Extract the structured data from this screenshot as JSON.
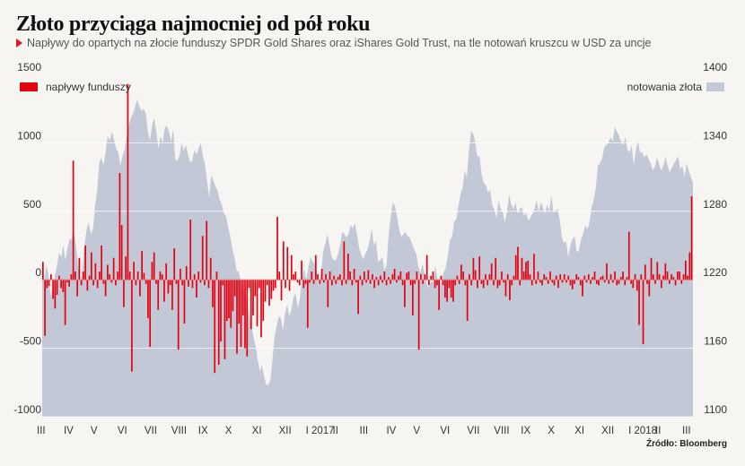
{
  "title": "Złoto przyciąga najmocniej od pół roku",
  "subtitle": "Napływy do opartych na złocie funduszy SPDR Gold Shares oraz iShares Gold Trust, na tle notowań kruszcu w USD za uncje",
  "source": "Źródło: Bloomberg",
  "colors": {
    "bars": "#e3000f",
    "area": "#c3c8d6",
    "background": "#f6f5f1",
    "marker": "#d71920"
  },
  "chart_data": {
    "type": "bar",
    "legend_placement": "top",
    "grid": true,
    "series": [
      {
        "name": "napływy funduszy",
        "type": "bar",
        "axis": "left",
        "ylim": [
          -1000,
          1500
        ],
        "yticks": [
          -1000,
          -500,
          0,
          500,
          1000,
          1500
        ],
        "values": [
          130,
          -410,
          -60,
          -45,
          40,
          -140,
          -210,
          -110,
          30,
          -60,
          -90,
          -330,
          -20,
          -50,
          40,
          870,
          60,
          -120,
          160,
          -40,
          60,
          250,
          -80,
          30,
          200,
          -40,
          120,
          -60,
          60,
          250,
          -30,
          -120,
          110,
          40,
          -20,
          160,
          -40,
          60,
          780,
          400,
          -200,
          170,
          1430,
          60,
          -670,
          130,
          -40,
          60,
          -120,
          210,
          50,
          -30,
          -280,
          -490,
          130,
          200,
          -30,
          -220,
          60,
          40,
          -160,
          120,
          -100,
          -40,
          -220,
          230,
          -30,
          -510,
          80,
          -40,
          -320,
          100,
          -50,
          440,
          -60,
          40,
          -130,
          60,
          -20,
          320,
          -40,
          430,
          -60,
          160,
          -200,
          -680,
          60,
          -620,
          -450,
          -40,
          -580,
          -300,
          -280,
          -350,
          -230,
          -120,
          -540,
          -320,
          -490,
          -260,
          -500,
          -560,
          -60,
          -360,
          -260,
          -120,
          -340,
          -60,
          -420,
          -300,
          -160,
          -40,
          -190,
          -140,
          -80,
          -60,
          460,
          60,
          -150,
          280,
          -60,
          240,
          -80,
          180,
          40,
          60,
          -20,
          -40,
          140,
          -60,
          -30,
          -350,
          -20,
          60,
          -30,
          180,
          40,
          -30,
          80,
          -20,
          40,
          -200,
          60,
          -40,
          30,
          -30,
          20,
          40,
          -40,
          280,
          -30,
          190,
          60,
          -40,
          80,
          -20,
          -250,
          30,
          -40,
          60,
          -20,
          70,
          -30,
          40,
          -60,
          20,
          -40,
          30,
          -20,
          60,
          -40,
          20,
          -30,
          40,
          80,
          -20,
          30,
          60,
          -40,
          -200,
          50,
          60,
          -40,
          -260,
          -30,
          60,
          -510,
          40,
          -30,
          40,
          180,
          -40,
          30,
          60,
          -60,
          -40,
          -220,
          30,
          -40,
          -130,
          -160,
          -60,
          -130,
          -160,
          -40,
          30,
          -30,
          110,
          60,
          -40,
          -300,
          40,
          -40,
          160,
          70,
          -60,
          170,
          -30,
          -60,
          40,
          -40,
          40,
          120,
          -40,
          160,
          -60,
          -40,
          60,
          -20,
          -120,
          40,
          -150,
          -40,
          30,
          180,
          240,
          -40,
          160,
          60,
          130,
          140,
          40,
          -40,
          190,
          -30,
          60,
          -20,
          -40,
          40,
          20,
          -30,
          60,
          -20,
          -40,
          30,
          -60,
          40,
          -20,
          40,
          -20,
          30,
          -40,
          -70,
          -30,
          40,
          20,
          -40,
          -120,
          30,
          -20,
          40,
          -30,
          20,
          60,
          -30,
          -40,
          20,
          30,
          -20,
          120,
          -30,
          40,
          -20,
          60,
          -40,
          -30,
          20,
          60,
          -40,
          20,
          350,
          -30,
          -60,
          40,
          -80,
          -330,
          40,
          -470,
          110,
          -30,
          -120,
          160,
          40,
          -30,
          130,
          40,
          -60,
          30,
          120,
          60,
          -30,
          40,
          20,
          -40,
          60,
          60,
          -30,
          40,
          140,
          30,
          200,
          610
        ]
      },
      {
        "name": "notowania złota",
        "type": "area",
        "axis": "right",
        "ylim": [
          1100,
          1400
        ],
        "yticks": [
          1100,
          1160,
          1220,
          1280,
          1340,
          1400
        ],
        "values": [
          1238,
          1218,
          1233,
          1224,
          1206,
          1213,
          1224,
          1232,
          1244,
          1240,
          1250,
          1237,
          1248,
          1256,
          1255,
          1262,
          1250,
          1232,
          1219,
          1228,
          1250,
          1264,
          1270,
          1260,
          1264,
          1284,
          1298,
          1322,
          1327,
          1320,
          1332,
          1346,
          1342,
          1350,
          1343,
          1335,
          1332,
          1320,
          1328,
          1334,
          1345,
          1355,
          1362,
          1366,
          1372,
          1378,
          1372,
          1368,
          1370,
          1366,
          1350,
          1342,
          1355,
          1362,
          1350,
          1335,
          1346,
          1340,
          1353,
          1355,
          1350,
          1341,
          1352,
          1325,
          1324,
          1329,
          1340,
          1333,
          1338,
          1330,
          1323,
          1324,
          1334,
          1330,
          1335,
          1340,
          1329,
          1322,
          1308,
          1292,
          1312,
          1307,
          1302,
          1298,
          1290,
          1286,
          1278,
          1276,
          1266,
          1258,
          1247,
          1240,
          1228,
          1227,
          1220,
          1210,
          1212,
          1196,
          1188,
          1180,
          1170,
          1162,
          1150,
          1140,
          1145,
          1136,
          1128,
          1128,
          1132,
          1150,
          1170,
          1180,
          1188,
          1186,
          1176,
          1191,
          1198,
          1188,
          1194,
          1205,
          1208,
          1195,
          1204,
          1222,
          1230,
          1220,
          1231,
          1240,
          1236,
          1234,
          1227,
          1216,
          1226,
          1245,
          1252,
          1260,
          1250,
          1240,
          1237,
          1237,
          1243,
          1250,
          1262,
          1260,
          1257,
          1260,
          1268,
          1265,
          1270,
          1260,
          1248,
          1242,
          1238,
          1243,
          1247,
          1254,
          1265,
          1250,
          1254,
          1236,
          1237,
          1240,
          1228,
          1233,
          1260,
          1276,
          1288,
          1284,
          1275,
          1264,
          1258,
          1260,
          1262,
          1258,
          1257,
          1252,
          1247,
          1243,
          1232,
          1226,
          1234,
          1225,
          1216,
          1213,
          1218,
          1219,
          1232,
          1222,
          1215,
          1220,
          1226,
          1231,
          1241,
          1255,
          1258,
          1271,
          1273,
          1285,
          1295,
          1301,
          1316,
          1310,
          1333,
          1350,
          1348,
          1340,
          1328,
          1328,
          1312,
          1305,
          1303,
          1296,
          1299,
          1285,
          1282,
          1274,
          1290,
          1282,
          1279,
          1270,
          1280,
          1295,
          1286,
          1282,
          1288,
          1278,
          1282,
          1284,
          1276,
          1279,
          1272,
          1274,
          1278,
          1282,
          1290,
          1280,
          1288,
          1283,
          1278,
          1286,
          1280,
          1294,
          1279,
          1281,
          1282,
          1272,
          1257,
          1252,
          1254,
          1240,
          1250,
          1256,
          1258,
          1244,
          1246,
          1255,
          1260,
          1268,
          1264,
          1270,
          1283,
          1290,
          1300,
          1320,
          1322,
          1326,
          1336,
          1338,
          1340,
          1345,
          1341,
          1354,
          1350,
          1346,
          1341,
          1338,
          1345,
          1334,
          1332,
          1338,
          1320,
          1334,
          1341,
          1331,
          1332,
          1327,
          1330,
          1326,
          1322,
          1316,
          1319,
          1327,
          1321,
          1316,
          1320,
          1328,
          1320,
          1314,
          1318,
          1322,
          1325,
          1328,
          1317,
          1320,
          1310,
          1322,
          1316,
          1310,
          1305
        ]
      }
    ],
    "x_tick_labels": [
      "III",
      "IV",
      "V",
      "VI",
      "VII",
      "VIII",
      "IX",
      "X",
      "XI",
      "XII",
      "I 2017",
      "II",
      "III",
      "IV",
      "V",
      "VI",
      "VII",
      "VIII",
      "IX",
      "X",
      "XI",
      "XII",
      "I 2018",
      "II",
      "III"
    ]
  }
}
